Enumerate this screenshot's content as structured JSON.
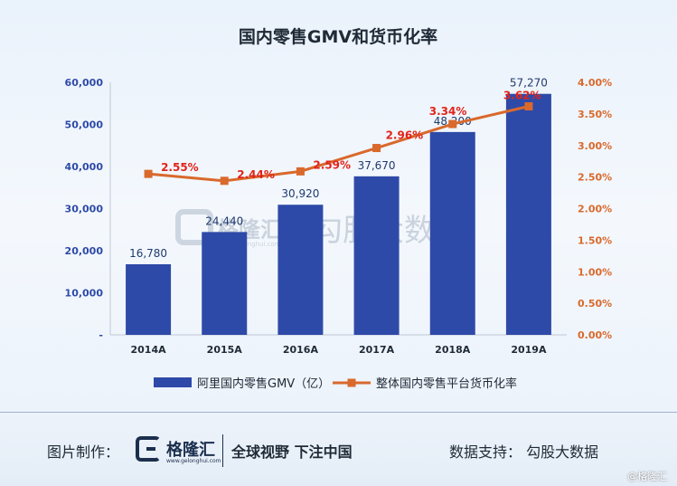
{
  "chart_data": {
    "type": "bar",
    "title": "国内零售GMV和货币化率",
    "categories": [
      "2014A",
      "2015A",
      "2016A",
      "2017A",
      "2018A",
      "2019A"
    ],
    "series": [
      {
        "name": "阿里国内零售GMV（亿）",
        "type": "bar",
        "axis": "left",
        "values": [
          16780,
          24440,
          30920,
          37670,
          48200,
          57270
        ],
        "labels": [
          "16,780",
          "24,440",
          "30,920",
          "37,670",
          "48,200",
          "57,270"
        ],
        "color": "#2e4aa8"
      },
      {
        "name": "整体国内零售平台货币化率",
        "type": "line",
        "axis": "right",
        "values": [
          2.55,
          2.44,
          2.59,
          2.96,
          3.34,
          3.62
        ],
        "labels": [
          "2.55%",
          "2.44%",
          "2.59%",
          "2.96%",
          "3.34%",
          "3.62%"
        ],
        "color": "#d9692c"
      }
    ],
    "left_axis": {
      "ylim": [
        0,
        60000
      ],
      "ticks": [
        "-",
        "10,000",
        "20,000",
        "30,000",
        "40,000",
        "50,000",
        "60,000"
      ],
      "color": "#2e4aa8"
    },
    "right_axis": {
      "ylim": [
        0,
        4.0
      ],
      "ticks": [
        "0.00%",
        "0.50%",
        "1.00%",
        "1.50%",
        "2.00%",
        "2.50%",
        "3.00%",
        "3.50%",
        "4.00%"
      ],
      "color": "#d9692c"
    },
    "line_label_color": "#e2231a",
    "legend_position": "bottom",
    "grid": false
  },
  "watermark": {
    "brand": "格隆汇",
    "domain": "www.gelonghui.com",
    "text": "勾股大数据"
  },
  "footer": {
    "made_label": "图片制作：",
    "logo_text": "格隆汇",
    "logo_domain": "www.gelonghui.com",
    "slogan": "全球视野 下注中国",
    "support": "数据支持：  勾股大数据",
    "weibo": "@格隆汇"
  }
}
